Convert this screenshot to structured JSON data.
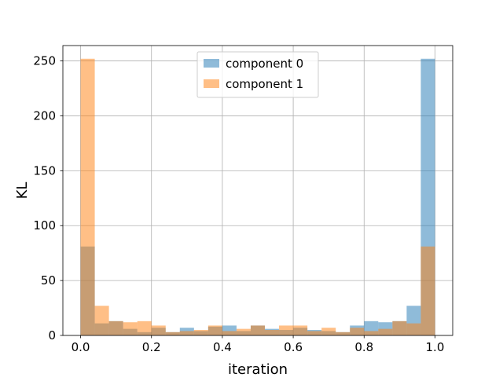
{
  "chart_data": {
    "type": "bar",
    "subtype": "overlapping-histogram",
    "title": "",
    "xlabel": "iteration",
    "ylabel": "KL",
    "xlim": [
      -0.05,
      1.05
    ],
    "ylim": [
      0,
      264
    ],
    "xticks": [
      0.0,
      0.2,
      0.4,
      0.6,
      0.8,
      1.0
    ],
    "xtick_labels": [
      "0.0",
      "0.2",
      "0.4",
      "0.6",
      "0.8",
      "1.0"
    ],
    "yticks": [
      0,
      50,
      100,
      150,
      200,
      250
    ],
    "ytick_labels": [
      "0",
      "50",
      "100",
      "150",
      "200",
      "250"
    ],
    "grid": true,
    "legend_position": "upper center",
    "bin_edges": [
      0.0,
      0.04,
      0.08,
      0.12,
      0.16,
      0.2,
      0.24,
      0.28,
      0.32,
      0.36,
      0.4,
      0.44,
      0.48,
      0.52,
      0.56,
      0.6,
      0.64,
      0.68,
      0.72,
      0.76,
      0.8,
      0.84,
      0.88,
      0.92,
      0.96,
      1.0
    ],
    "series": [
      {
        "name": "component 0",
        "color": "#1f77b4",
        "opacity": 0.5,
        "values": [
          81,
          11,
          13,
          6,
          3,
          7,
          3,
          7,
          4,
          8,
          9,
          4,
          9,
          6,
          5,
          7,
          5,
          4,
          3,
          9,
          13,
          12,
          13,
          27,
          252
        ]
      },
      {
        "name": "component 1",
        "color": "#ff7f0e",
        "opacity": 0.5,
        "values": [
          252,
          27,
          13,
          12,
          13,
          9,
          3,
          4,
          5,
          9,
          4,
          6,
          9,
          5,
          9,
          9,
          4,
          7,
          3,
          7,
          4,
          6,
          13,
          11,
          81
        ]
      }
    ]
  }
}
